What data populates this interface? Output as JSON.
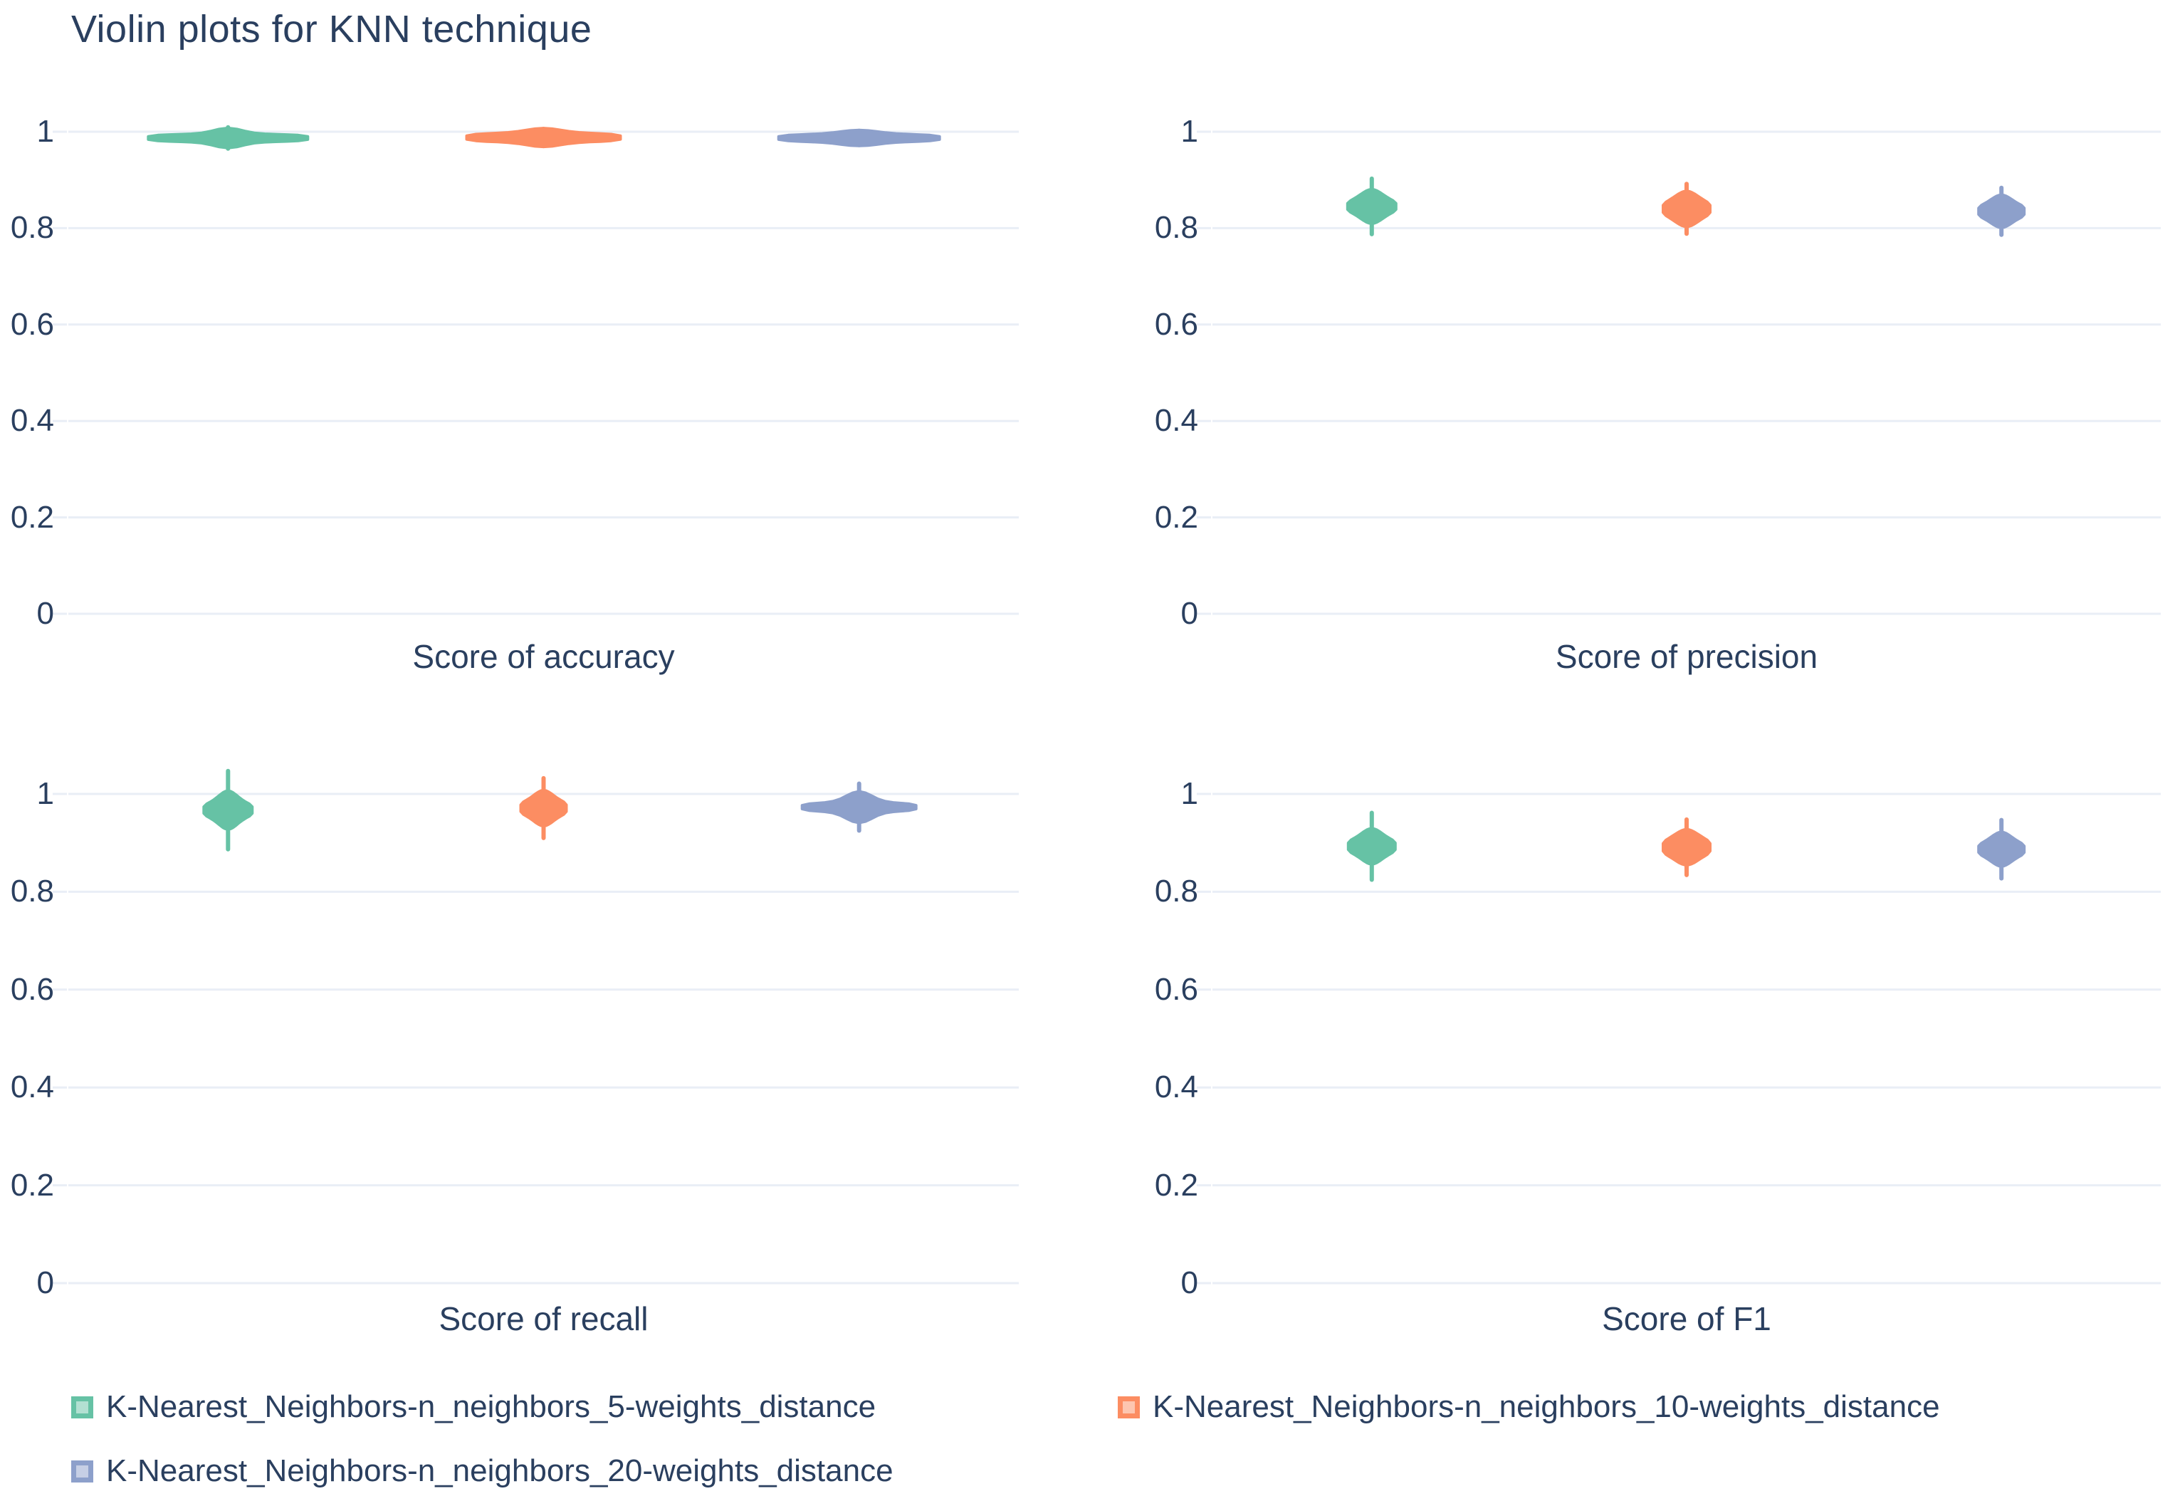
{
  "title": "Violin plots for KNN technique",
  "colors": {
    "text": "#2a3f5f",
    "grid": "#e9eef6",
    "background": "#ffffff",
    "series_green": "#66c2a5",
    "series_orange": "#fc8d62",
    "series_blue": "#8da0cb"
  },
  "legend": {
    "items": [
      {
        "label": "K-Nearest_Neighbors-n_neighbors_5-weights_distance",
        "color": "#66c2a5"
      },
      {
        "label": "K-Nearest_Neighbors-n_neighbors_10-weights_distance",
        "color": "#fc8d62"
      },
      {
        "label": "K-Nearest_Neighbors-n_neighbors_20-weights_distance",
        "color": "#8da0cb"
      }
    ]
  },
  "chart_data": {
    "type": "violin",
    "title": "Violin plots for KNN technique",
    "orientation": "vertical",
    "grid": true,
    "legend_position": "bottom",
    "ylim": [
      0,
      1
    ],
    "yticks": [
      1,
      0.8,
      0.6,
      0.4,
      0.2,
      0
    ],
    "x_positions": [
      0.168,
      0.5,
      0.832
    ],
    "series": [
      {
        "name": "K-Nearest_Neighbors-n_neighbors_5-weights_distance",
        "color": "#66c2a5"
      },
      {
        "name": "K-Nearest_Neighbors-n_neighbors_10-weights_distance",
        "color": "#fc8d62"
      },
      {
        "name": "K-Nearest_Neighbors-n_neighbors_20-weights_distance",
        "color": "#8da0cb"
      }
    ],
    "subplots": [
      {
        "xlabel": "Score of accuracy",
        "violins": [
          {
            "series": 0,
            "x_frac": 0.168,
            "center": 0.987,
            "min": 0.979,
            "max": 0.995,
            "wing_w": 112,
            "wing_h": 6,
            "core_w": 30,
            "core_h": 14,
            "tail": 18
          },
          {
            "series": 1,
            "x_frac": 0.5,
            "center": 0.988,
            "min": 0.98,
            "max": 0.995,
            "wing_w": 108,
            "wing_h": 7,
            "core_w": 36,
            "core_h": 13,
            "tail": 15
          },
          {
            "series": 2,
            "x_frac": 0.832,
            "center": 0.987,
            "min": 0.98,
            "max": 0.994,
            "wing_w": 113,
            "wing_h": 6,
            "core_w": 40,
            "core_h": 11,
            "tail": 13
          }
        ]
      },
      {
        "xlabel": "Score of precision",
        "violins": [
          {
            "series": 0,
            "x_frac": 0.168,
            "center": 0.845,
            "min": 0.826,
            "max": 0.862,
            "wing_w": 34,
            "wing_h": 10,
            "core_w": 22,
            "core_h": 24,
            "tail": 42
          },
          {
            "series": 1,
            "x_frac": 0.5,
            "center": 0.84,
            "min": 0.824,
            "max": 0.856,
            "wing_w": 33,
            "wing_h": 12,
            "core_w": 22,
            "core_h": 25,
            "tail": 38
          },
          {
            "series": 2,
            "x_frac": 0.832,
            "center": 0.835,
            "min": 0.82,
            "max": 0.85,
            "wing_w": 32,
            "wing_h": 11,
            "core_w": 20,
            "core_h": 23,
            "tail": 36
          }
        ]
      },
      {
        "xlabel": "Score of recall",
        "violins": [
          {
            "series": 0,
            "x_frac": 0.168,
            "center": 0.967,
            "min": 0.944,
            "max": 0.984,
            "wing_w": 34,
            "wing_h": 12,
            "core_w": 19,
            "core_h": 27,
            "tail": 58
          },
          {
            "series": 1,
            "x_frac": 0.5,
            "center": 0.971,
            "min": 0.954,
            "max": 0.984,
            "wing_w": 32,
            "wing_h": 12,
            "core_w": 19,
            "core_h": 25,
            "tail": 45
          },
          {
            "series": 2,
            "x_frac": 0.832,
            "center": 0.973,
            "min": 0.952,
            "max": 0.985,
            "wing_w": 80,
            "wing_h": 7,
            "core_w": 27,
            "core_h": 22,
            "tail": 36
          }
        ]
      },
      {
        "xlabel": "Score of F1",
        "violins": [
          {
            "series": 0,
            "x_frac": 0.168,
            "center": 0.893,
            "min": 0.875,
            "max": 0.908,
            "wing_w": 33,
            "wing_h": 12,
            "core_w": 20,
            "core_h": 25,
            "tail": 50
          },
          {
            "series": 1,
            "x_frac": 0.5,
            "center": 0.891,
            "min": 0.876,
            "max": 0.906,
            "wing_w": 33,
            "wing_h": 13,
            "core_w": 22,
            "core_h": 25,
            "tail": 42
          },
          {
            "series": 2,
            "x_frac": 0.832,
            "center": 0.887,
            "min": 0.872,
            "max": 0.901,
            "wing_w": 32,
            "wing_h": 11,
            "core_w": 20,
            "core_h": 24,
            "tail": 44
          }
        ]
      }
    ]
  }
}
